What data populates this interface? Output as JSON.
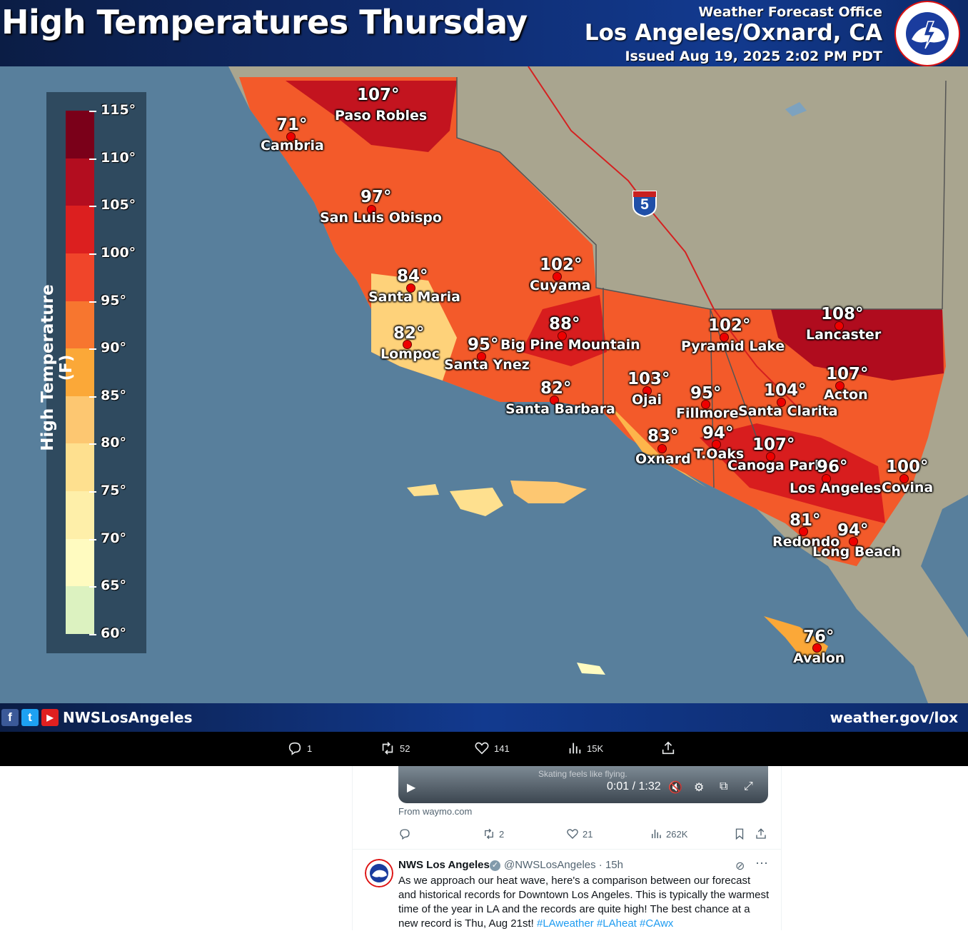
{
  "graphic": {
    "title": "High Temperatures Thursday",
    "office_line1": "Weather Forecast Office",
    "office_line2": "Los Angeles/Oxnard, CA",
    "issued": "Issued Aug 19, 2025 2:02 PM PDT",
    "logo_text": "NATIONAL WEATHER SERVICE",
    "highway": "5",
    "footer_handle": "NWSLosAngeles",
    "footer_site": "weather.gov/lox",
    "legend": {
      "title": "High Temperature (F)",
      "ticks": [
        "115°",
        "110°",
        "105°",
        "100°",
        "95°",
        "90°",
        "85°",
        "80°",
        "75°",
        "70°",
        "65°",
        "60°"
      ],
      "colors": [
        "#7a0019",
        "#b30d1f",
        "#dc1f1f",
        "#f0452a",
        "#f7762f",
        "#fba838",
        "#fdc771",
        "#fee08f",
        "#feefa9",
        "#fffbc0",
        "#dcf2c0",
        "#a5d89b"
      ]
    },
    "cities": [
      {
        "temp": "107°",
        "name": "Paso Robles"
      },
      {
        "temp": "71°",
        "name": "Cambria"
      },
      {
        "temp": "97°",
        "name": "San Luis Obispo"
      },
      {
        "temp": "84°",
        "name": "Santa Maria"
      },
      {
        "temp": "82°",
        "name": "Lompoc"
      },
      {
        "temp": "102°",
        "name": "Cuyama"
      },
      {
        "temp": "88°",
        "name": "Big Pine Mountain"
      },
      {
        "temp": "95°",
        "name": "Santa Ynez"
      },
      {
        "temp": "82°",
        "name": "Santa Barbara"
      },
      {
        "temp": "103°",
        "name": "Ojai"
      },
      {
        "temp": "102°",
        "name": "Pyramid Lake"
      },
      {
        "temp": "108°",
        "name": "Lancaster"
      },
      {
        "temp": "95°",
        "name": "Fillmore"
      },
      {
        "temp": "104°",
        "name": "Santa Clarita"
      },
      {
        "temp": "107°",
        "name": "Acton"
      },
      {
        "temp": "83°",
        "name": "Oxnard"
      },
      {
        "temp": "94°",
        "name": "T.Oaks"
      },
      {
        "temp": "107°",
        "name": "Canoga Park"
      },
      {
        "temp": "96°",
        "name": "Los Angeles"
      },
      {
        "temp": "100°",
        "name": "Covina"
      },
      {
        "temp": "81°",
        "name": "Redondo"
      },
      {
        "temp": "94°",
        "name": "Long Beach"
      },
      {
        "temp": "76°",
        "name": "Avalon"
      }
    ]
  },
  "tweet_actions": {
    "replies": "1",
    "reposts": "52",
    "likes": "141",
    "views": "15K"
  },
  "video_card": {
    "caption": "Skating feels like flying.",
    "time": "0:01 / 1:32",
    "from": "From waymo.com",
    "reposts": "2",
    "likes": "21",
    "views": "262K"
  },
  "next_tweet": {
    "name": "NWS Los Angeles",
    "handle_time": "@NWSLosAngeles · 15h",
    "body": "As we approach our heat wave, here's a comparison between our forecast and historical records for Downtown Los Angeles.  This is typically the warmest time of the year in LA and the records are quite high! The best chance at a new record is Thu, Aug 21st! ",
    "hashtags": [
      "#LAweather",
      "#LAheat",
      "#CAwx"
    ]
  },
  "colors": {
    "ocean": "#587f9c",
    "header": "#0f2a6b",
    "link": "#1d9bf0"
  }
}
